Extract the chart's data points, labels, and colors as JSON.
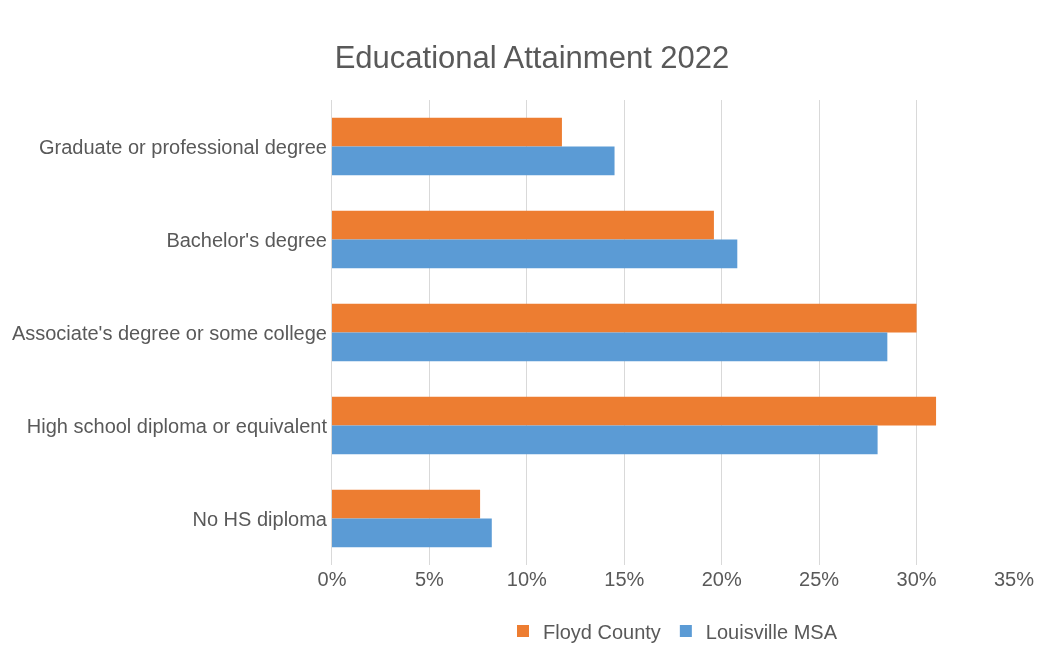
{
  "chart_data": {
    "type": "bar",
    "orientation": "horizontal",
    "title": "Educational Attainment 2022",
    "categories": [
      "Graduate or professional degree",
      "Bachelor's degree",
      "Associate's degree or some college",
      "High school diploma or equivalent",
      "No HS diploma"
    ],
    "series": [
      {
        "name": "Floyd County",
        "color": "#ed7d31",
        "values": [
          11.8,
          19.6,
          30.0,
          31.0,
          7.6
        ]
      },
      {
        "name": "Louisville MSA",
        "color": "#5b9bd5",
        "values": [
          14.5,
          20.8,
          28.5,
          28.0,
          8.2
        ]
      }
    ],
    "xlim": [
      0,
      35
    ],
    "xticks": [
      {
        "value": 0,
        "label": "0%"
      },
      {
        "value": 5,
        "label": "5%"
      },
      {
        "value": 10,
        "label": "10%"
      },
      {
        "value": 15,
        "label": "15%"
      },
      {
        "value": 20,
        "label": "20%"
      },
      {
        "value": 25,
        "label": "25%"
      },
      {
        "value": 30,
        "label": "30%"
      },
      {
        "value": 35,
        "label": "35%"
      }
    ],
    "grid": "x",
    "legend": "bottom"
  }
}
